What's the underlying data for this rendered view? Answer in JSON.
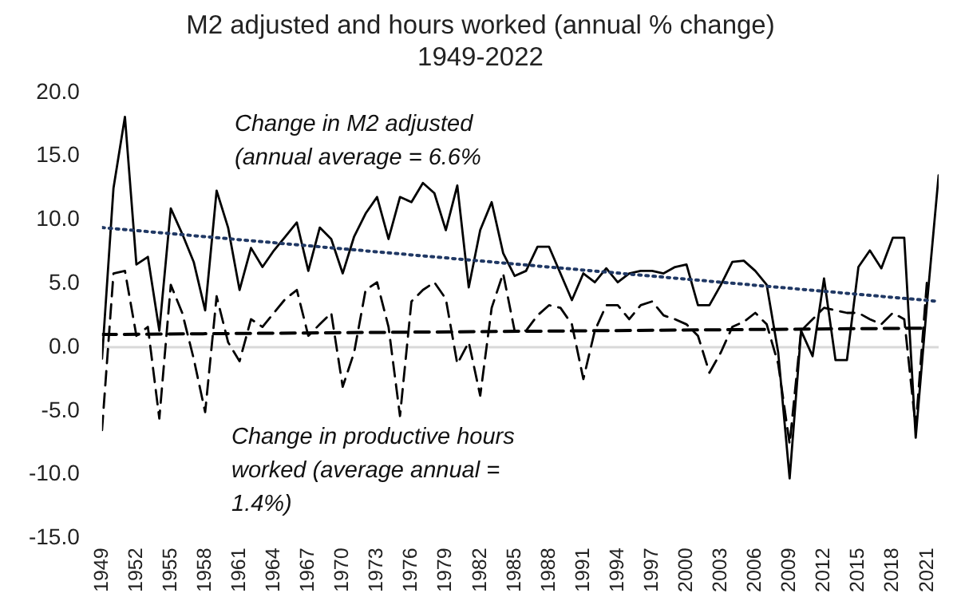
{
  "chart_data": {
    "type": "line",
    "title": "M2 adjusted and hours worked (annual % change) 1949-2022",
    "x": [
      1949,
      1950,
      1951,
      1952,
      1953,
      1954,
      1955,
      1956,
      1957,
      1958,
      1959,
      1960,
      1961,
      1962,
      1963,
      1964,
      1965,
      1966,
      1967,
      1968,
      1969,
      1970,
      1971,
      1972,
      1973,
      1974,
      1975,
      1976,
      1977,
      1978,
      1979,
      1980,
      1981,
      1982,
      1983,
      1984,
      1985,
      1986,
      1987,
      1988,
      1989,
      1990,
      1991,
      1992,
      1993,
      1994,
      1995,
      1996,
      1997,
      1998,
      1999,
      2000,
      2001,
      2002,
      2003,
      2004,
      2005,
      2006,
      2007,
      2008,
      2009,
      2010,
      2011,
      2012,
      2013,
      2014,
      2015,
      2016,
      2017,
      2018,
      2019,
      2020,
      2021,
      2022
    ],
    "series": [
      {
        "color": "#000000",
        "line_style": "solid",
        "values": [
          -0.9,
          12.5,
          18.1,
          6.5,
          7.1,
          1.3,
          10.9,
          8.9,
          6.7,
          2.9,
          12.3,
          9.4,
          4.5,
          7.8,
          6.3,
          7.6,
          8.7,
          9.8,
          6.0,
          9.4,
          8.5,
          5.8,
          8.7,
          10.5,
          11.8,
          8.5,
          11.8,
          11.4,
          12.9,
          12.1,
          9.2,
          12.7,
          4.7,
          9.2,
          11.4,
          7.4,
          5.6,
          6.0,
          7.9,
          7.9,
          5.8,
          3.7,
          5.8,
          5.1,
          6.2,
          5.1,
          5.8,
          6.0,
          6.0,
          5.8,
          6.3,
          6.5,
          3.3,
          3.3,
          4.9,
          6.7,
          6.8,
          6.0,
          4.9,
          -0.4,
          -10.3,
          1.3,
          -0.7,
          5.4,
          -1.0,
          -1.0,
          6.3,
          7.6,
          6.2,
          8.6,
          8.6,
          -7.1,
          3.6,
          13.5
        ]
      },
      {
        "color": "#000000",
        "line_style": "dashed",
        "values": [
          -6.5,
          5.8,
          6.0,
          0.9,
          1.6,
          -5.6,
          4.9,
          2.7,
          -0.9,
          -5.1,
          4.0,
          0.4,
          -1.1,
          2.2,
          1.6,
          2.7,
          3.8,
          4.5,
          0.9,
          1.8,
          2.7,
          -3.1,
          -0.4,
          4.5,
          5.1,
          1.6,
          -5.4,
          3.6,
          4.5,
          5.1,
          3.8,
          -1.3,
          0.4,
          -3.8,
          3.1,
          5.8,
          1.3,
          1.3,
          2.5,
          3.3,
          3.1,
          1.8,
          -2.5,
          1.3,
          3.3,
          3.3,
          2.2,
          3.3,
          3.6,
          2.5,
          2.2,
          1.8,
          0.9,
          -2.0,
          -0.4,
          1.6,
          2.0,
          2.7,
          1.8,
          -1.3,
          -7.6,
          1.3,
          2.2,
          3.1,
          2.9,
          2.7,
          2.7,
          2.2,
          1.8,
          2.7,
          2.2,
          -6.3,
          5.4,
          null
        ]
      },
      {
        "type": "line",
        "color": "#203864",
        "line_style": "dotted",
        "x": [
          1949,
          2022
        ],
        "values": [
          9.4,
          3.6
        ]
      },
      {
        "type": "line",
        "color": "#000000",
        "line_style": "dashed",
        "x": [
          1949,
          2021
        ],
        "values": [
          1.0,
          1.5
        ]
      }
    ],
    "xlim": [
      1949,
      2022
    ],
    "xticks": [
      1949,
      1952,
      1955,
      1958,
      1961,
      1964,
      1967,
      1970,
      1973,
      1976,
      1979,
      1982,
      1985,
      1988,
      1991,
      1994,
      1997,
      2000,
      2003,
      2006,
      2009,
      2012,
      2015,
      2018,
      2021
    ],
    "ylim": [
      -15,
      20
    ],
    "yticks": [
      {
        "value": -15,
        "label": "-15.0"
      },
      {
        "value": -10,
        "label": "-10.0"
      },
      {
        "value": -5,
        "label": "-5.0"
      },
      {
        "value": 0,
        "label": "0.0"
      },
      {
        "value": 5,
        "label": "5.0"
      },
      {
        "value": 10,
        "label": "10.0"
      },
      {
        "value": 15,
        "label": "15.0"
      },
      {
        "value": 20,
        "label": "20.0"
      }
    ],
    "ref_lines": [
      {
        "axis": "y",
        "value": 0,
        "color": "#d9d9d9"
      }
    ],
    "annotations": [
      "Change in M2 adjusted (annual average = 6.6%",
      "Change in productive hours worked (average annual = 1.4%)"
    ],
    "grid": false,
    "legend": false,
    "marker": "none"
  }
}
